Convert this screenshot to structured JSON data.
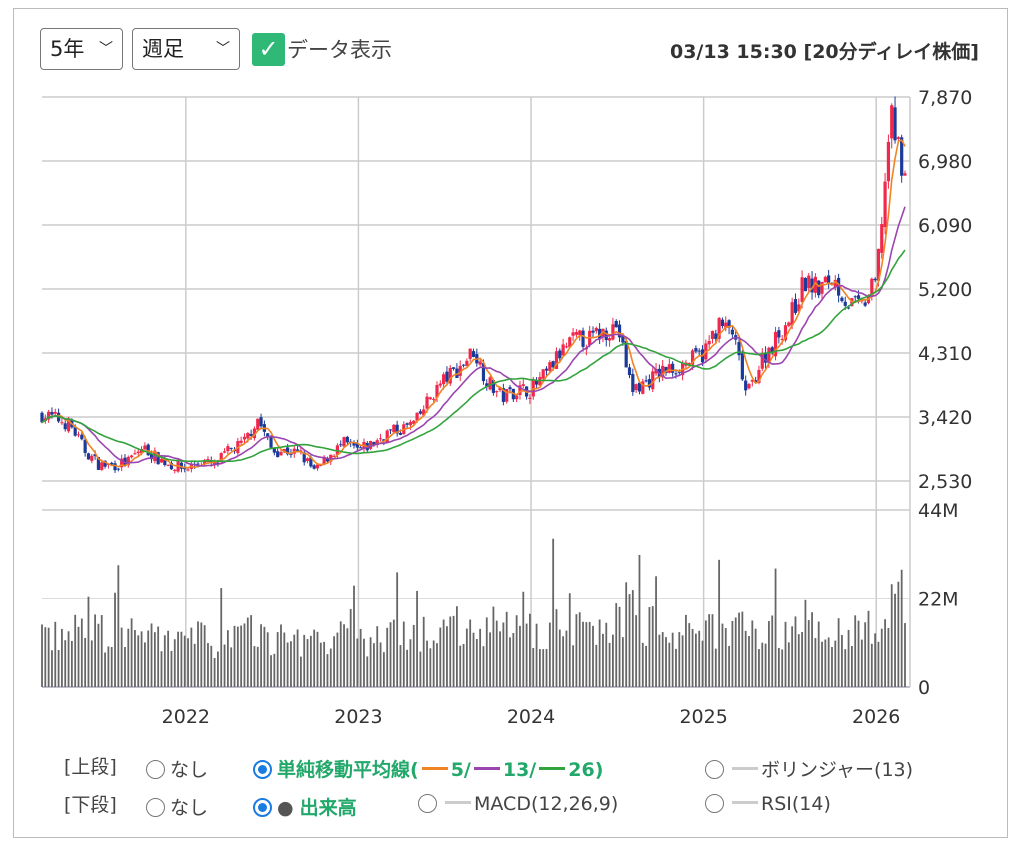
{
  "controls": {
    "period": "5年",
    "interval": "週足",
    "show_data_label": "データ表示",
    "show_data_checked": true,
    "timestamp": "03/13 15:30 [20分ディレイ株価]"
  },
  "options": {
    "upper_label": "[上段]",
    "lower_label": "[下段]",
    "none": "なし",
    "sma_label": "単純移動平均線(",
    "sma5": "5/",
    "sma13": "13/",
    "sma26": "26)",
    "bollinger": "ボリンジャー(13)",
    "volume": "出来高",
    "macd": "MACD(12,26,9)",
    "rsi": "RSI(14)",
    "upper_selected": "sma",
    "lower_selected": "volume"
  },
  "colors": {
    "up": "#f0284b",
    "down": "#1b3a9a",
    "ma5": "#f08424",
    "ma13": "#9b45b0",
    "ma26": "#33a33d",
    "volume": "#666666",
    "grid": "#cccccc"
  },
  "chart_data": {
    "type": "candlestick",
    "interval": "weekly",
    "start": "2021-03",
    "end": "2026-03",
    "monthly_close": [
      3450,
      3400,
      3300,
      2950,
      2750,
      2750,
      2800,
      3000,
      2850,
      2750,
      2700,
      2800,
      2750,
      2950,
      3050,
      3400,
      2950,
      2950,
      2900,
      2650,
      2900,
      3050,
      2950,
      3050,
      3200,
      3250,
      3350,
      3700,
      3950,
      4100,
      4350,
      3900,
      3700,
      3800,
      3800,
      4000,
      4300,
      4500,
      4500,
      4600,
      4700,
      3800,
      3900,
      4050,
      4100,
      4200,
      4300,
      4700,
      4600,
      3700,
      4200,
      4500,
      4800,
      5300,
      5200,
      5350,
      5000,
      4950,
      5300,
      7600,
      6800
    ],
    "monthly_volume_m": [
      14,
      13,
      13,
      18,
      15,
      13,
      13,
      14,
      12,
      12,
      12,
      13,
      12,
      13,
      13,
      15,
      12,
      12,
      12,
      14,
      12,
      13,
      12,
      12,
      13,
      13,
      13,
      15,
      15,
      16,
      17,
      16,
      15,
      14,
      15,
      15,
      16,
      16,
      15,
      15,
      18,
      22,
      16,
      15,
      14,
      14,
      14,
      16,
      15,
      19,
      15,
      14,
      14,
      17,
      15,
      16,
      14,
      14,
      16,
      24,
      18
    ],
    "price_axis": {
      "ticks": [
        "7,870",
        "6,980",
        "6,090",
        "5,200",
        "4,310",
        "3,420",
        "2,530"
      ],
      "values": [
        7870,
        6980,
        6090,
        5200,
        4310,
        3420,
        2530
      ],
      "min": 2530,
      "max": 7870
    },
    "volume_axis": {
      "ticks": [
        "44M",
        "22M",
        "0"
      ],
      "values": [
        44,
        22,
        0
      ],
      "max": 44
    },
    "x_ticks": [
      {
        "label": "2022",
        "month_index": 10
      },
      {
        "label": "2023",
        "month_index": 22
      },
      {
        "label": "2024",
        "month_index": 34
      },
      {
        "label": "2025",
        "month_index": 46
      },
      {
        "label": "2026",
        "month_index": 58
      }
    ],
    "moving_averages": [
      5,
      13,
      26
    ]
  }
}
